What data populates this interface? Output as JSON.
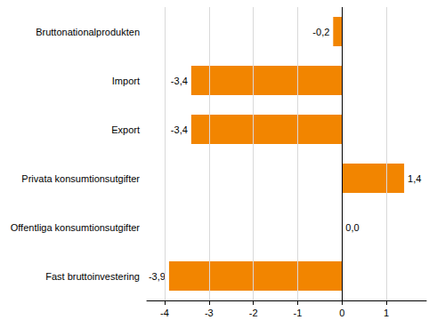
{
  "chart_data": {
    "type": "bar",
    "orientation": "horizontal",
    "categories": [
      "Bruttonationalprodukten",
      "Import",
      "Export",
      "Privata konsumtionsutgifter",
      "Offentliga konsumtionsutgifter",
      "Fast bruttoinvestering"
    ],
    "values": [
      -0.2,
      -3.4,
      -3.4,
      1.4,
      0.0,
      -3.9
    ],
    "value_labels": [
      "-0,2",
      "-3,4",
      "-3,4",
      "1,4",
      "0,0",
      "-3,9"
    ],
    "color": "#f28500",
    "xlim": [
      -4.4,
      1.9
    ],
    "xticks": [
      -4,
      -3,
      -2,
      -1,
      0,
      1
    ],
    "grid": true,
    "data_labels": true
  }
}
